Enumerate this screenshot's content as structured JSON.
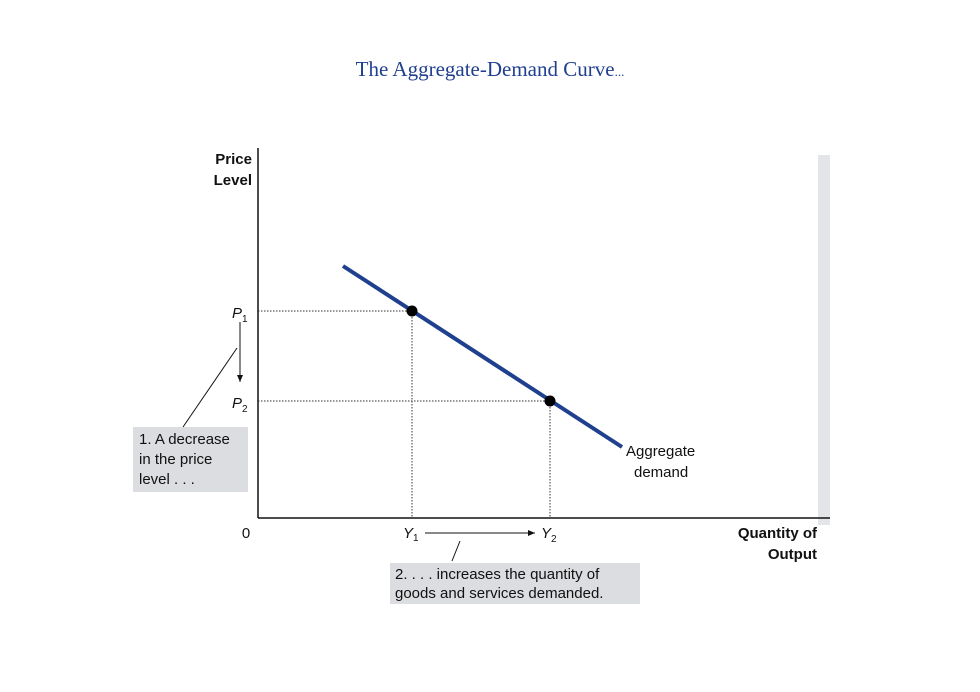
{
  "title": "The Aggregate-Demand Curve",
  "title_suffix": "...",
  "y_axis_label": [
    "Price",
    "Level"
  ],
  "x_axis_label": [
    "Quantity of",
    "Output"
  ],
  "origin_label": "0",
  "price_labels": [
    {
      "letter": "P",
      "subscript": "1"
    },
    {
      "letter": "P",
      "subscript": "2"
    }
  ],
  "quantity_labels": [
    {
      "letter": "Y",
      "subscript": "1"
    },
    {
      "letter": "Y",
      "subscript": "2"
    }
  ],
  "curve_label": [
    "Aggregate",
    "demand"
  ],
  "annotations": [
    {
      "lines": [
        "1. A decrease",
        "in the price",
        "level . . ."
      ]
    },
    {
      "lines": [
        "2. . . . increases the quantity of",
        "goods and services demanded."
      ]
    }
  ]
}
